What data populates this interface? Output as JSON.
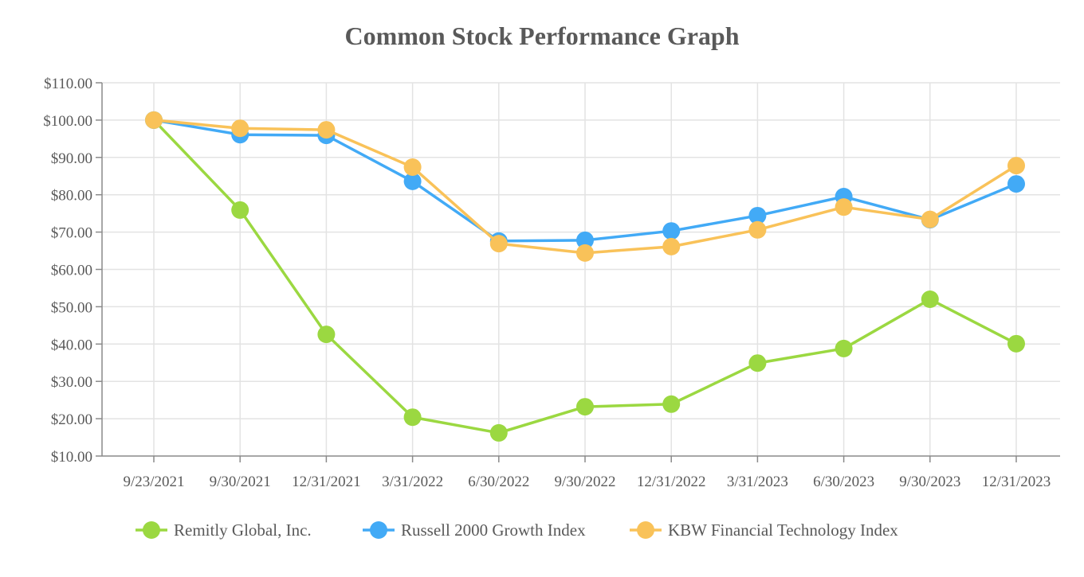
{
  "chart_data": {
    "type": "line",
    "title": "Common Stock Performance Graph",
    "xlabel": "",
    "ylabel": "",
    "categories": [
      "9/23/2021",
      "9/30/2021",
      "12/31/2021",
      "3/31/2022",
      "6/30/2022",
      "9/30/2022",
      "12/31/2022",
      "3/31/2023",
      "6/30/2023",
      "9/30/2023",
      "12/31/2023"
    ],
    "ylim": [
      10,
      110
    ],
    "yticks": [
      10,
      20,
      30,
      40,
      50,
      60,
      70,
      80,
      90,
      100,
      110
    ],
    "ytick_labels": [
      "$10.00",
      "$20.00",
      "$30.00",
      "$40.00",
      "$50.00",
      "$60.00",
      "$70.00",
      "$80.00",
      "$90.00",
      "$100.00",
      "$110.00"
    ],
    "grid": true,
    "legend_position": "bottom",
    "series": [
      {
        "name": "Remitly Global, Inc.",
        "color": "#9bd841",
        "values": [
          100,
          75.9,
          42.6,
          20.4,
          16.2,
          23.2,
          23.9,
          34.9,
          38.8,
          52.0,
          40.1
        ]
      },
      {
        "name": "Russell 2000 Growth Index",
        "color": "#42aaf6",
        "values": [
          100,
          96.1,
          95.9,
          83.6,
          67.6,
          67.8,
          70.3,
          74.4,
          79.5,
          73.3,
          82.9
        ]
      },
      {
        "name": "KBW Financial Technology Index",
        "color": "#f9c259",
        "values": [
          100,
          97.8,
          97.4,
          87.4,
          66.9,
          64.4,
          66.1,
          70.6,
          76.7,
          73.4,
          87.8
        ]
      }
    ]
  }
}
